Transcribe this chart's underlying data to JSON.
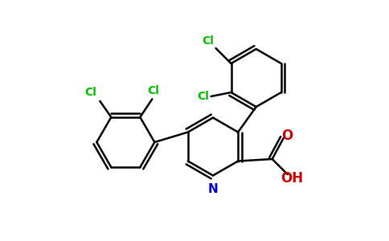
{
  "background_color": "#ffffff",
  "bond_color": "#000000",
  "cl_color": "#00bb00",
  "n_color": "#0000cc",
  "o_color": "#cc0000",
  "line_width": 1.8,
  "figsize": [
    4.84,
    3.0
  ],
  "dpi": 100,
  "xlim": [
    0,
    9.68
  ],
  "ylim": [
    0,
    6.0
  ]
}
